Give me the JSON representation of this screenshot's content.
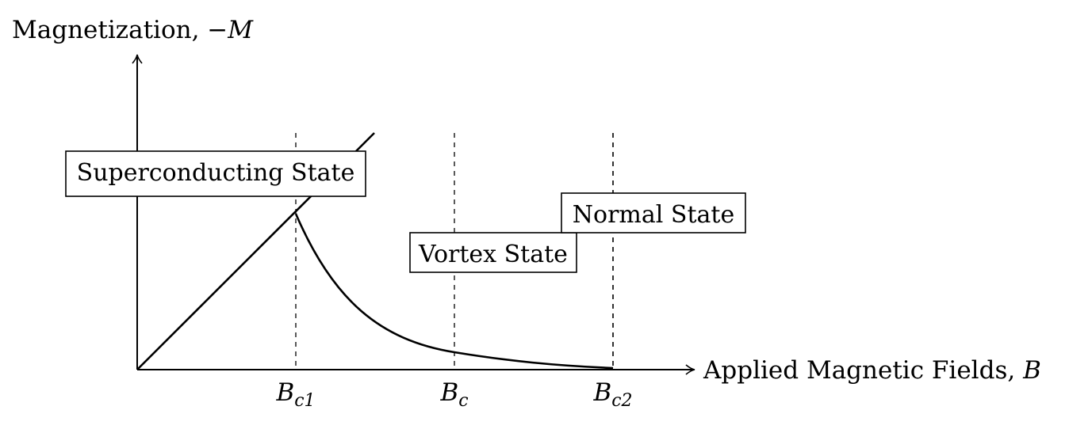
{
  "y_axis": {
    "label": "Magnetization, ",
    "var": "−M"
  },
  "x_axis": {
    "label": "Applied Magnetic Fields, ",
    "var": "B"
  },
  "ticks": [
    {
      "base": "B",
      "sub": "c1"
    },
    {
      "base": "B",
      "sub": "c"
    },
    {
      "base": "B",
      "sub": "c2"
    }
  ],
  "regions": {
    "superconducting": "Superconducting State",
    "vortex": "Vortex State",
    "normal": "Normal State"
  }
}
